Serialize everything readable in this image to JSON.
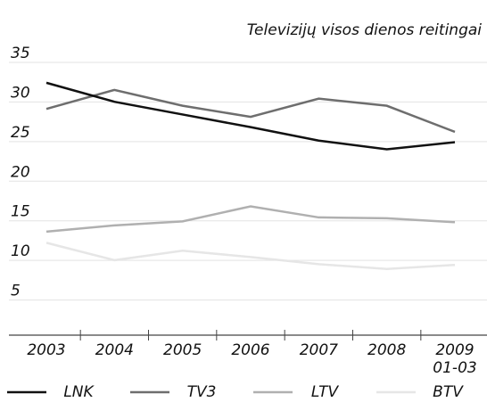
{
  "chart_data": {
    "type": "line",
    "title": "Televizijų visos dienos reitingai",
    "categories": [
      "2003",
      "2004",
      "2005",
      "2006",
      "2007",
      "2008",
      "2009 01-03"
    ],
    "series": [
      {
        "name": "LNK",
        "color": "#111111",
        "values": [
          31.3,
          28.9,
          27.3,
          25.7,
          24.0,
          22.9,
          23.8
        ]
      },
      {
        "name": "TV3",
        "color": "#6e6e6e",
        "values": [
          28.0,
          30.4,
          28.4,
          27.0,
          29.3,
          28.4,
          25.1
        ]
      },
      {
        "name": "LTV",
        "color": "#b0b0b0",
        "values": [
          12.5,
          13.3,
          13.8,
          15.7,
          14.3,
          14.2,
          13.7
        ]
      },
      {
        "name": "BTV",
        "color": "#e6e6e6",
        "values": [
          11.1,
          8.9,
          10.1,
          9.3,
          8.4,
          7.8,
          8.3
        ]
      }
    ],
    "ylim": [
      0,
      35
    ],
    "yticks": [
      5,
      10,
      15,
      20,
      25,
      30,
      35
    ],
    "grid": true
  }
}
